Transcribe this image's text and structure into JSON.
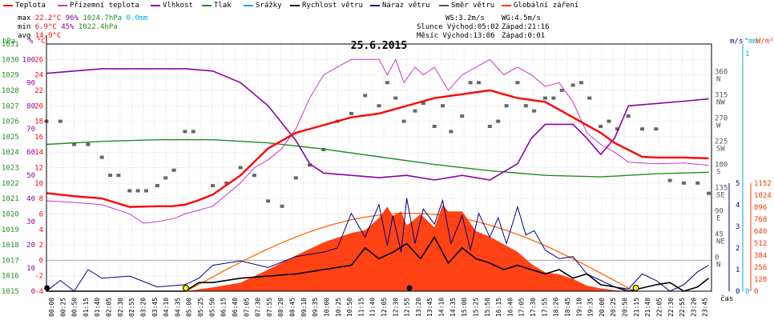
{
  "legend": [
    {
      "label": "Teplota",
      "color": "#ff0000"
    },
    {
      "label": "Přízemní teplota",
      "color": "#cc33cc"
    },
    {
      "label": "Vlhkost",
      "color": "#8800aa"
    },
    {
      "label": "Tlak",
      "color": "#228b22"
    },
    {
      "label": "Srážky",
      "color": "#00aadd"
    },
    {
      "label": "Rychlost větru",
      "color": "#000000"
    },
    {
      "label": "Náraz větru",
      "color": "#000088"
    },
    {
      "label": "Směr větru",
      "color": "#555555"
    },
    {
      "label": "Globální záření",
      "color": "#ff3300"
    }
  ],
  "stats": {
    "max_label": "max",
    "max_temp": "22.2°C",
    "max_hum": "96%",
    "max_press": "1024.7hPa",
    "rain": "0.0mm",
    "min_label": "min",
    "min_temp": "6.9°C",
    "min_hum": "45%",
    "min_press": "1022.4hPa",
    "avg_label": "avg",
    "avg_temp": "14.9°C",
    "ws": "WS:3.2m/s",
    "wg": "WG:4.5m/s",
    "slunce": "Slunce Východ:05:02",
    "slunce_zapad": "Západ:21:16",
    "mesic": "Měsíc  Východ:13:06",
    "mesic_zapad": "Západ:0:01"
  },
  "chart_data": {
    "type": "line",
    "title": "25.6.2015",
    "xlabel": "čas",
    "axis_headers": {
      "hpa": "hPa",
      "pct": "%",
      "degc": "°C",
      "ms": "m/s",
      "deg": "°",
      "mm": "mm",
      "wm2": "W/m²"
    },
    "x_ticks": [
      "00:00",
      "00:25",
      "00:50",
      "01:15",
      "01:40",
      "02:05",
      "02:30",
      "02:55",
      "03:20",
      "03:45",
      "04:10",
      "04:35",
      "05:00",
      "05:25",
      "05:50",
      "06:15",
      "06:40",
      "07:05",
      "07:30",
      "07:55",
      "08:20",
      "08:45",
      "09:10",
      "09:35",
      "10:00",
      "10:25",
      "10:50",
      "11:15",
      "11:40",
      "12:05",
      "12:30",
      "12:55",
      "13:20",
      "13:45",
      "14:10",
      "14:35",
      "15:00",
      "15:25",
      "15:50",
      "16:15",
      "16:40",
      "17:05",
      "17:30",
      "17:55",
      "18:20",
      "18:45",
      "19:10",
      "19:35",
      "20:00",
      "20:25",
      "20:50",
      "21:15",
      "21:40",
      "22:05",
      "22:30",
      "22:55",
      "23:20",
      "23:45"
    ],
    "y_temp_ticks": [
      -4,
      -2,
      0,
      2,
      4,
      6,
      8,
      10,
      12,
      14,
      16,
      18,
      20,
      22,
      24,
      26
    ],
    "y_hum_ticks": [
      0,
      10,
      20,
      30,
      40,
      50,
      60,
      70,
      80,
      90,
      100
    ],
    "y_press_ticks": [
      1015,
      1016,
      1017,
      1018,
      1019,
      1020,
      1021,
      1022,
      1023,
      1024,
      1025,
      1026,
      1027,
      1028,
      1029,
      1030,
      1031
    ],
    "y_dir_ticks": [
      {
        "v": "0",
        "dir": "N"
      },
      {
        "v": "45",
        "dir": "NE"
      },
      {
        "v": "90",
        "dir": "E"
      },
      {
        "v": "135",
        "dir": "SE"
      },
      {
        "v": "180",
        "dir": "S"
      },
      {
        "v": "225",
        "dir": "SW"
      },
      {
        "v": "270",
        "dir": "W"
      },
      {
        "v": "315",
        "dir": "NW"
      },
      {
        "v": "360",
        "dir": "N"
      }
    ],
    "y_ms_ticks": [
      0,
      1,
      2,
      3,
      4,
      5
    ],
    "y_rain_ticks": [
      0,
      1
    ],
    "y_rad_ticks": [
      0,
      128,
      256,
      384,
      512,
      640,
      768,
      896,
      1024,
      1152
    ],
    "temp_range": [
      -4,
      28
    ],
    "temp": {
      "hours": [
        0,
        1,
        2,
        3,
        4,
        4.5,
        5,
        5.5,
        6,
        7,
        8,
        9,
        10,
        11,
        12,
        13,
        14,
        15,
        16,
        17,
        18,
        19,
        19.5,
        20,
        20.5,
        21,
        21.5,
        22,
        23,
        23.9
      ],
      "values": [
        8.7,
        8.3,
        8,
        6.9,
        7,
        7,
        7.2,
        7.8,
        8.5,
        11,
        14.5,
        16.5,
        17.5,
        18.5,
        19,
        20,
        21,
        21.5,
        22,
        21,
        20.5,
        18.5,
        17.5,
        16.5,
        15.2,
        14.3,
        13.4,
        13.3,
        13.3,
        13.2
      ]
    },
    "ground_temp": {
      "hours": [
        0,
        1,
        2,
        3,
        3.5,
        4,
        4.6,
        5,
        5.5,
        6,
        6.5,
        7,
        7.5,
        8,
        8.5,
        9,
        9.5,
        10,
        11,
        12,
        12.3,
        12.6,
        12.9,
        13.3,
        13.6,
        14,
        14.5,
        15,
        16,
        16.5,
        17,
        17.5,
        18,
        18.5,
        19,
        19.5,
        20,
        20.5,
        21,
        22,
        23,
        23.9
      ],
      "values": [
        7.7,
        7.5,
        7.2,
        6,
        4.8,
        5,
        5.4,
        6,
        6.5,
        7,
        8.5,
        10,
        12,
        13,
        14.5,
        17,
        21,
        24,
        26,
        26,
        24,
        26,
        23,
        25,
        24,
        25,
        22,
        24,
        26,
        24,
        25,
        24,
        22.5,
        23,
        20.5,
        16.5,
        15,
        14,
        12.7,
        12.5,
        12.6,
        12.3
      ]
    },
    "humidity": {
      "hours": [
        0,
        1,
        2,
        3,
        4,
        5,
        6,
        7,
        8,
        9,
        9.5,
        10,
        11,
        12,
        13,
        14,
        15,
        16,
        17,
        17.5,
        18,
        19,
        19.5,
        20,
        20.5,
        21,
        22,
        23,
        23.9
      ],
      "values": [
        94,
        95,
        96,
        96,
        96,
        96,
        95,
        90,
        80,
        65,
        55,
        51,
        50,
        49,
        50,
        48,
        50,
        48,
        55,
        66,
        72,
        72,
        66,
        59,
        66,
        80,
        81,
        82,
        83
      ]
    },
    "pressure": {
      "hours": [
        0,
        2,
        4,
        6,
        8,
        10,
        12,
        14,
        16,
        18,
        20,
        22,
        23.9
      ],
      "values": [
        1024.5,
        1024.7,
        1024.8,
        1024.8,
        1024.6,
        1024.2,
        1023.7,
        1023.2,
        1022.8,
        1022.5,
        1022.4,
        1022.6,
        1022.7
      ]
    },
    "radiation_theoretical_peak": 830,
    "radiation": {
      "hours": [
        5,
        6,
        7,
        8,
        9,
        10,
        11,
        11.5,
        12,
        12.3,
        12.5,
        12.8,
        13,
        13.5,
        14,
        14.3,
        14.5,
        15,
        15.5,
        16,
        16.5,
        17,
        17.5,
        18,
        18.5,
        19,
        19.5,
        20,
        20.5,
        21
      ],
      "values": [
        0,
        40,
        90,
        230,
        380,
        520,
        620,
        650,
        780,
        900,
        800,
        850,
        700,
        820,
        680,
        920,
        850,
        850,
        640,
        580,
        500,
        420,
        290,
        200,
        180,
        130,
        60,
        30,
        10,
        0
      ]
    },
    "wind_speed": {
      "hours": [
        0,
        1,
        2,
        3,
        4,
        5,
        5.5,
        6,
        7,
        8,
        9,
        10,
        11,
        11.5,
        12,
        12.5,
        13,
        13.5,
        14,
        14.5,
        15,
        15.5,
        16,
        16.5,
        17,
        17.5,
        18,
        18.5,
        19,
        19.5,
        20,
        20.5,
        21,
        22,
        22.5,
        23,
        23.5,
        23.9
      ],
      "values": [
        0,
        0,
        0,
        0,
        0,
        0,
        0.4,
        0.4,
        0.6,
        0.7,
        0.8,
        1.0,
        1.2,
        2.0,
        1.5,
        1.8,
        2.2,
        1.5,
        2.5,
        1.3,
        2.0,
        1.5,
        1.3,
        1.0,
        1.2,
        1.0,
        0.8,
        1.0,
        0.6,
        0.8,
        0.3,
        0.2,
        0.0,
        0.3,
        0.4,
        0,
        0.2,
        0.6
      ]
    },
    "wind_gust": {
      "hours": [
        0,
        0.5,
        1,
        1.5,
        2,
        3,
        4,
        5,
        5.5,
        6,
        7,
        8,
        9,
        10,
        10.5,
        11,
        11.5,
        12,
        12.3,
        12.5,
        12.8,
        13,
        13.3,
        13.6,
        14,
        14.3,
        14.6,
        15,
        15.3,
        15.6,
        16,
        16.3,
        16.6,
        17,
        17.3,
        17.6,
        18,
        18.5,
        19,
        19.5,
        20,
        20.5,
        21,
        21.5,
        22,
        22.5,
        23,
        23.5,
        23.9
      ],
      "values": [
        0,
        0.5,
        0,
        1.0,
        0.6,
        0.7,
        0.2,
        0.3,
        0.6,
        1.2,
        1.4,
        1.1,
        1.6,
        1.8,
        2.0,
        3.6,
        2.5,
        4.0,
        2.1,
        3.5,
        1.8,
        4.3,
        2.2,
        3.8,
        3.1,
        4.2,
        2.2,
        3.5,
        1.9,
        3.6,
        2.5,
        3.4,
        2.2,
        3.9,
        2.6,
        2.8,
        1.9,
        1.5,
        1.6,
        0.8,
        0.5,
        0.2,
        0.1,
        0.8,
        0.5,
        0,
        0.3,
        0.9,
        1.2
      ]
    },
    "wind_dir_points": [
      [
        0,
        270
      ],
      [
        0.5,
        270
      ],
      [
        1,
        225
      ],
      [
        1.5,
        225
      ],
      [
        2,
        200
      ],
      [
        2.3,
        165
      ],
      [
        2.6,
        165
      ],
      [
        3,
        135
      ],
      [
        3.3,
        135
      ],
      [
        3.6,
        135
      ],
      [
        4,
        145
      ],
      [
        4.3,
        160
      ],
      [
        4.6,
        175
      ],
      [
        5,
        250
      ],
      [
        5.3,
        250
      ],
      [
        6,
        145
      ],
      [
        6.5,
        150
      ],
      [
        7,
        180
      ],
      [
        7.5,
        165
      ],
      [
        8,
        115
      ],
      [
        8.5,
        105
      ],
      [
        9,
        160
      ],
      [
        9.5,
        185
      ],
      [
        10,
        215
      ],
      [
        10.5,
        270
      ],
      [
        11,
        285
      ],
      [
        11.5,
        320
      ],
      [
        12,
        300
      ],
      [
        12.3,
        345
      ],
      [
        12.6,
        315
      ],
      [
        12.9,
        270
      ],
      [
        13.3,
        290
      ],
      [
        13.6,
        305
      ],
      [
        14,
        260
      ],
      [
        14.3,
        300
      ],
      [
        14.6,
        250
      ],
      [
        15,
        280
      ],
      [
        15.3,
        345
      ],
      [
        15.6,
        345
      ],
      [
        16,
        260
      ],
      [
        16.3,
        270
      ],
      [
        16.6,
        300
      ],
      [
        17,
        345
      ],
      [
        17.3,
        300
      ],
      [
        17.6,
        290
      ],
      [
        18,
        315
      ],
      [
        18.3,
        315
      ],
      [
        18.6,
        330
      ],
      [
        19,
        340
      ],
      [
        19.3,
        345
      ],
      [
        19.6,
        315
      ],
      [
        20,
        260
      ],
      [
        20.3,
        270
      ],
      [
        20.6,
        255
      ],
      [
        21,
        280
      ],
      [
        21.5,
        255
      ],
      [
        22,
        255
      ],
      [
        22.5,
        155
      ],
      [
        23,
        150
      ],
      [
        23.5,
        150
      ],
      [
        23.9,
        130
      ]
    ]
  }
}
